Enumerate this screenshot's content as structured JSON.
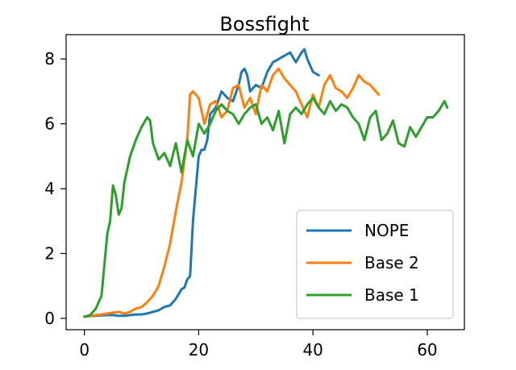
{
  "chart_data": {
    "type": "line",
    "title": "Bossfight",
    "xlabel": "",
    "ylabel": "",
    "xlim": [
      -3.2,
      66.5
    ],
    "ylim": [
      -0.35,
      8.75
    ],
    "xticks": [
      0,
      20,
      40,
      60
    ],
    "yticks": [
      0,
      2,
      4,
      6,
      8
    ],
    "grid": false,
    "legend_position": "lower-right",
    "series": [
      {
        "name": "NOPE",
        "color": "#1f77b4",
        "x": [
          0,
          1,
          2,
          3,
          4,
          5,
          6,
          7,
          8,
          9,
          10,
          11,
          12,
          13,
          14,
          15,
          16,
          17,
          17.5,
          18,
          18.5,
          19,
          19.5,
          20,
          20.5,
          21,
          21.5,
          22,
          23,
          24,
          25,
          26,
          27,
          27.5,
          28,
          28.5,
          29,
          30,
          31,
          32,
          33,
          34,
          35,
          36,
          37,
          38,
          38.5,
          39,
          40,
          41
        ],
        "y": [
          0.05,
          0.07,
          0.08,
          0.09,
          0.1,
          0.1,
          0.08,
          0.08,
          0.1,
          0.12,
          0.12,
          0.15,
          0.2,
          0.25,
          0.35,
          0.4,
          0.6,
          0.9,
          0.95,
          1.2,
          1.3,
          3.0,
          4.0,
          5.0,
          5.2,
          5.2,
          5.5,
          6.3,
          6.5,
          7.0,
          6.8,
          6.7,
          7.2,
          7.6,
          7.7,
          7.5,
          7.0,
          7.2,
          7.1,
          7.6,
          7.9,
          8.0,
          8.1,
          8.2,
          7.9,
          8.2,
          8.3,
          8.0,
          7.6,
          7.5
        ]
      },
      {
        "name": "Base 2",
        "color": "#ff7f0e",
        "x": [
          0,
          1,
          2,
          3,
          4,
          5,
          6,
          7,
          8,
          9,
          10,
          11,
          12,
          13,
          14,
          15,
          16,
          17,
          18,
          18.5,
          19,
          20,
          21,
          22,
          23,
          24,
          25,
          26,
          27,
          28,
          29,
          30,
          31,
          32,
          33,
          34,
          35,
          36,
          37,
          38,
          39,
          40,
          41,
          42,
          43,
          44,
          45,
          46,
          47,
          48,
          49,
          50,
          51,
          51.5
        ],
        "y": [
          0.05,
          0.08,
          0.1,
          0.12,
          0.15,
          0.18,
          0.2,
          0.15,
          0.2,
          0.3,
          0.35,
          0.5,
          0.7,
          1.0,
          1.6,
          2.3,
          3.3,
          4.2,
          5.5,
          6.9,
          7.0,
          6.8,
          6.0,
          6.6,
          6.7,
          6.2,
          6.4,
          7.1,
          7.2,
          6.5,
          6.8,
          6.3,
          7.2,
          7.0,
          7.5,
          7.7,
          7.4,
          7.2,
          7.0,
          6.6,
          6.2,
          6.9,
          6.5,
          7.2,
          7.5,
          7.1,
          7.0,
          6.8,
          7.1,
          7.5,
          7.3,
          7.2,
          7.0,
          6.9
        ]
      },
      {
        "name": "Base 1",
        "color": "#2ca02c",
        "x": [
          0,
          1,
          2,
          3,
          4,
          4.5,
          5,
          5.5,
          6,
          6.5,
          7,
          8,
          9,
          10,
          11,
          11.5,
          12,
          13,
          14,
          15,
          16,
          17,
          18,
          19,
          20,
          21,
          22,
          23,
          24,
          25,
          26,
          27,
          28,
          29,
          30,
          31,
          32,
          33,
          34,
          35,
          36,
          37,
          38,
          39,
          40,
          41,
          42,
          43,
          44,
          45,
          46,
          47,
          48,
          49,
          50,
          51,
          52,
          53,
          54,
          55,
          56,
          57,
          58,
          59,
          60,
          61,
          62,
          63,
          63.5
        ],
        "y": [
          0.05,
          0.1,
          0.3,
          0.7,
          2.6,
          3.0,
          4.1,
          3.8,
          3.2,
          3.4,
          4.2,
          5.0,
          5.5,
          5.9,
          6.2,
          6.1,
          5.4,
          4.9,
          5.1,
          4.7,
          5.4,
          4.5,
          5.5,
          5.0,
          6.0,
          5.7,
          6.0,
          6.4,
          6.6,
          6.4,
          6.3,
          6.0,
          6.3,
          6.5,
          6.6,
          6.0,
          6.2,
          5.8,
          6.4,
          5.4,
          6.3,
          6.5,
          6.3,
          6.6,
          6.8,
          6.5,
          6.3,
          6.7,
          6.4,
          6.6,
          6.5,
          6.2,
          6.0,
          5.5,
          6.2,
          6.4,
          5.5,
          5.7,
          6.1,
          5.4,
          5.3,
          5.9,
          5.6,
          5.9,
          6.2,
          6.2,
          6.4,
          6.7,
          6.5
        ]
      }
    ]
  }
}
